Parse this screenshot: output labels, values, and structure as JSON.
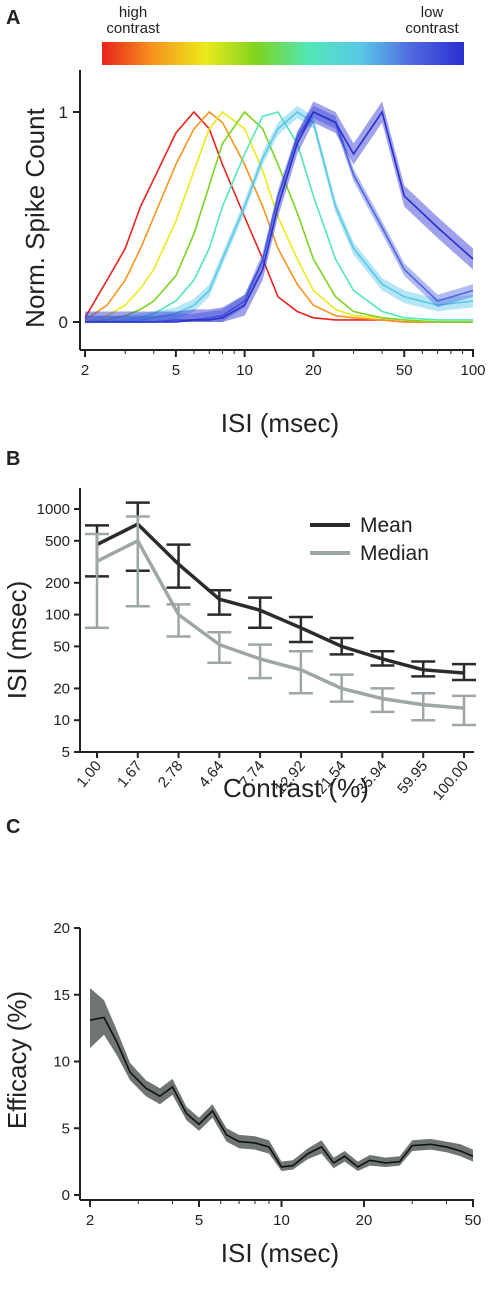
{
  "figure": {
    "panels": [
      "A",
      "B",
      "C"
    ],
    "colorbar": {
      "left_label": "high\ncontrast",
      "right_label": "low\ncontrast",
      "colors": [
        "#e8231c",
        "#f7941d",
        "#ecea1c",
        "#7dd321",
        "#51e7b6",
        "#5ac8e8",
        "#5068e0",
        "#2a2fd0"
      ]
    }
  },
  "chart_data": [
    {
      "panel": "A",
      "type": "line",
      "xlabel": "ISI (msec)",
      "ylabel": "Norm. Spike Count",
      "xscale": "log",
      "xlim": [
        2,
        100
      ],
      "ylim": [
        0,
        1.05
      ],
      "xticks": [
        2,
        5,
        10,
        20,
        50,
        100
      ],
      "xtick_labels": [
        "2",
        "5",
        "10",
        "20",
        "50",
        "100"
      ],
      "yticks": [
        0,
        1
      ],
      "ytick_labels": [
        "0",
        "1"
      ],
      "colors": [
        "#e8231c",
        "#f7941d",
        "#ecea1c",
        "#7dd321",
        "#51e7b6",
        "#5ac8e8",
        "#5068e0",
        "#2a2fd0"
      ],
      "series": [
        {
          "x": [
            2,
            2.5,
            3,
            3.5,
            4,
            5,
            6,
            7,
            8,
            10,
            12,
            14,
            17,
            20,
            25,
            30,
            40,
            50,
            70,
            100
          ],
          "y": [
            0.02,
            0.2,
            0.35,
            0.55,
            0.68,
            0.9,
            1.0,
            0.92,
            0.75,
            0.5,
            0.3,
            0.12,
            0.05,
            0.02,
            0.01,
            0.01,
            0.01,
            0.0,
            0.0,
            0.0
          ]
        },
        {
          "x": [
            2,
            2.5,
            3,
            3.5,
            4,
            5,
            6,
            7,
            8,
            10,
            12,
            14,
            17,
            20,
            25,
            30,
            40,
            50,
            70,
            100
          ],
          "y": [
            0.01,
            0.08,
            0.2,
            0.35,
            0.5,
            0.75,
            0.92,
            1.0,
            0.95,
            0.75,
            0.55,
            0.35,
            0.18,
            0.08,
            0.03,
            0.02,
            0.01,
            0.0,
            0.0,
            0.0
          ]
        },
        {
          "x": [
            2,
            2.5,
            3,
            3.5,
            4,
            5,
            6,
            7,
            8,
            10,
            12,
            14,
            17,
            20,
            25,
            30,
            40,
            50,
            70,
            100
          ],
          "y": [
            0.0,
            0.03,
            0.08,
            0.16,
            0.25,
            0.48,
            0.72,
            0.92,
            1.0,
            0.92,
            0.72,
            0.5,
            0.3,
            0.15,
            0.06,
            0.03,
            0.02,
            0.01,
            0.0,
            0.0
          ]
        },
        {
          "x": [
            2,
            2.5,
            3,
            3.5,
            4,
            5,
            6,
            7,
            8,
            10,
            12,
            14,
            17,
            20,
            25,
            30,
            40,
            50,
            70,
            100
          ],
          "y": [
            0.0,
            0.01,
            0.03,
            0.06,
            0.1,
            0.22,
            0.42,
            0.65,
            0.85,
            1.0,
            0.92,
            0.75,
            0.52,
            0.3,
            0.12,
            0.05,
            0.02,
            0.01,
            0.0,
            0.0
          ]
        },
        {
          "x": [
            2,
            2.5,
            3,
            3.5,
            4,
            5,
            6,
            7,
            8,
            10,
            12,
            14,
            17,
            20,
            25,
            30,
            40,
            50,
            70,
            100
          ],
          "y": [
            0.0,
            0.0,
            0.01,
            0.02,
            0.04,
            0.1,
            0.2,
            0.35,
            0.55,
            0.8,
            0.98,
            1.0,
            0.85,
            0.6,
            0.3,
            0.15,
            0.05,
            0.02,
            0.01,
            0.01
          ]
        },
        {
          "x": [
            2,
            2.5,
            3,
            3.5,
            4,
            5,
            6,
            7,
            8,
            10,
            12,
            14,
            17,
            20,
            25,
            30,
            40,
            50,
            70,
            100
          ],
          "y": [
            0.0,
            0.0,
            0.0,
            0.01,
            0.02,
            0.04,
            0.08,
            0.15,
            0.3,
            0.55,
            0.78,
            0.92,
            1.0,
            0.95,
            0.55,
            0.35,
            0.18,
            0.12,
            0.08,
            0.1
          ]
        },
        {
          "x": [
            2,
            2.5,
            3,
            3.5,
            4,
            5,
            6,
            7,
            8,
            10,
            12,
            14,
            17,
            20,
            25,
            30,
            40,
            50,
            70,
            100
          ],
          "y": [
            0.0,
            0.0,
            0.0,
            0.0,
            0.0,
            0.01,
            0.01,
            0.02,
            0.03,
            0.1,
            0.3,
            0.6,
            0.88,
            1.0,
            0.95,
            0.7,
            0.45,
            0.25,
            0.1,
            0.15
          ]
        },
        {
          "x": [
            2,
            2.5,
            3,
            3.5,
            4,
            5,
            6,
            7,
            8,
            10,
            12,
            14,
            17,
            20,
            25,
            30,
            40,
            50,
            70,
            100
          ],
          "y": [
            0.0,
            0.0,
            0.0,
            0.0,
            0.0,
            0.0,
            0.01,
            0.01,
            0.02,
            0.08,
            0.25,
            0.55,
            0.85,
            1.0,
            0.95,
            0.8,
            1.0,
            0.6,
            0.45,
            0.3
          ]
        }
      ]
    },
    {
      "panel": "B",
      "type": "line",
      "xlabel": "Contrast (%)",
      "ylabel": "ISI (msec)",
      "yscale": "log",
      "ylim": [
        5,
        1300
      ],
      "yticks": [
        5,
        10,
        20,
        50,
        100,
        200,
        500,
        1000
      ],
      "ytick_labels": [
        "5",
        "10",
        "20",
        "50",
        "100",
        "200",
        "500",
        "1000"
      ],
      "categories": [
        "1.00",
        "1.67",
        "2.78",
        "4.64",
        "7.74",
        "12.92",
        "21.54",
        "35.94",
        "59.95",
        "100.00"
      ],
      "legend_position": "top-right",
      "series": [
        {
          "name": "Mean",
          "color": "#2b2b2b",
          "values": [
            460,
            720,
            300,
            140,
            110,
            75,
            50,
            38,
            30,
            28
          ],
          "err_lo": [
            230,
            260,
            180,
            100,
            75,
            55,
            42,
            33,
            26,
            24
          ],
          "err_hi": [
            700,
            1150,
            460,
            170,
            145,
            95,
            60,
            45,
            36,
            34
          ]
        },
        {
          "name": "Median",
          "color": "#9ea7a6",
          "values": [
            320,
            500,
            100,
            52,
            38,
            30,
            20,
            16,
            14,
            13
          ],
          "err_lo": [
            75,
            120,
            62,
            35,
            25,
            18,
            15,
            12,
            10,
            9
          ],
          "err_hi": [
            580,
            850,
            125,
            68,
            52,
            45,
            27,
            20,
            18,
            17
          ]
        }
      ]
    },
    {
      "panel": "C",
      "type": "line",
      "xlabel": "ISI (msec)",
      "ylabel": "Efficacy (%)",
      "xscale": "log",
      "xlim": [
        1.8,
        50
      ],
      "ylim": [
        0,
        20
      ],
      "xticks": [
        2,
        5,
        10,
        20,
        50
      ],
      "xtick_labels": [
        "2",
        "5",
        "10",
        "20",
        "50"
      ],
      "yticks": [
        0,
        5,
        10,
        15,
        20
      ],
      "ytick_labels": [
        "0",
        "5",
        "10",
        "15",
        "20"
      ],
      "line_color": "#111111",
      "band_color": "#6f7574",
      "x": [
        2,
        2.25,
        2.5,
        2.8,
        3.2,
        3.6,
        4,
        4.5,
        5,
        5.6,
        6.3,
        7,
        8,
        9,
        10,
        11,
        12.5,
        14,
        15.5,
        17,
        19,
        21,
        24,
        27,
        30,
        35,
        40,
        45,
        50
      ],
      "y": [
        13.1,
        13.3,
        11.5,
        9.2,
        8.0,
        7.4,
        8.1,
        6.1,
        5.3,
        6.3,
        4.5,
        4.0,
        3.9,
        3.6,
        2.1,
        2.2,
        3.1,
        3.6,
        2.4,
        2.9,
        2.1,
        2.6,
        2.4,
        2.5,
        3.7,
        3.8,
        3.6,
        3.3,
        2.9
      ],
      "y_lo": [
        11.0,
        12.0,
        10.5,
        8.6,
        7.4,
        6.8,
        7.5,
        5.6,
        4.8,
        5.8,
        4.0,
        3.5,
        3.4,
        3.1,
        1.8,
        1.9,
        2.7,
        3.1,
        2.0,
        2.5,
        1.8,
        2.2,
        2.1,
        2.2,
        3.3,
        3.4,
        3.2,
        2.9,
        2.5
      ],
      "y_hi": [
        15.5,
        14.6,
        12.4,
        9.9,
        8.6,
        8.0,
        8.7,
        6.6,
        5.8,
        6.8,
        5.0,
        4.5,
        4.4,
        4.1,
        2.5,
        2.6,
        3.5,
        4.1,
        2.8,
        3.3,
        2.5,
        3.0,
        2.8,
        2.9,
        4.1,
        4.2,
        4.0,
        3.8,
        3.4
      ]
    }
  ]
}
